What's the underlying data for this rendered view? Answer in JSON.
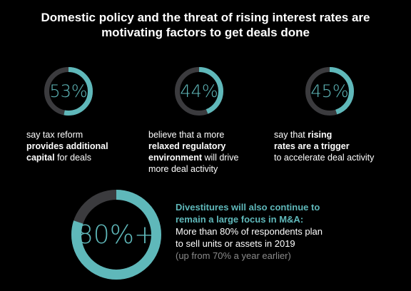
{
  "title": {
    "line1": "Domestic policy and the threat of rising interest rates are",
    "line2": "motivating factors to get deals done"
  },
  "colors": {
    "accent": "#5fb8ba",
    "track": "#3b3b3e",
    "background": "#000000",
    "note": "#8a8a8a"
  },
  "chart_data": {
    "type": "donut",
    "series": [
      {
        "label": "53%",
        "value": 53
      },
      {
        "label": "44%",
        "value": 44
      },
      {
        "label": "45%",
        "value": 45
      },
      {
        "label": "80%+",
        "value": 80
      }
    ]
  },
  "stats": [
    {
      "plain1": "say tax reform",
      "bold1": "provides additional",
      "bold2": "capital",
      "plain2": " for deals"
    },
    {
      "plain1": "believe that a more",
      "bold1": "relaxed regulatory",
      "bold2": "environment",
      "plain2": " will drive",
      "plain3": "more deal activity"
    },
    {
      "plain1": "say that ",
      "bold1": "rising",
      "bold2": "rates are a trigger",
      "plain2": "to accelerate deal activity"
    }
  ],
  "divestitures": {
    "heading1": "Divestitures will also continue to",
    "heading2": "remain a large focus in M&A:",
    "body1": "More than 80% of respondents plan",
    "body2": "to sell units or assets in 2019",
    "note": "(up from 70% a year earlier)"
  }
}
